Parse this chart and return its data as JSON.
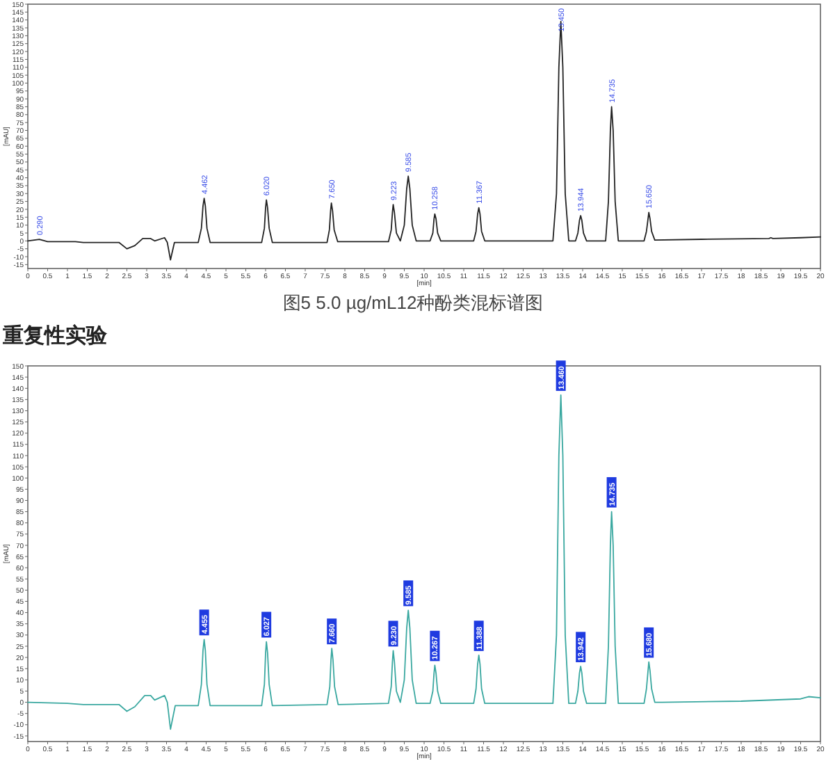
{
  "chart_data": [
    {
      "type": "line",
      "xlabel": "[min]",
      "ylabel": "[mAU]",
      "xlim": [
        0,
        20
      ],
      "ylim": [
        -17.5,
        150
      ],
      "xticks": [
        0,
        0.5,
        1,
        1.5,
        2,
        2.5,
        3,
        3.5,
        4,
        4.5,
        5,
        5.5,
        6,
        6.5,
        7,
        7.5,
        8,
        8.5,
        9,
        9.5,
        10,
        10.5,
        11,
        11.5,
        12,
        12.5,
        13,
        13.5,
        14,
        14.5,
        15,
        15.5,
        16,
        16.5,
        17,
        17.5,
        18,
        18.5,
        19,
        19.5,
        20
      ],
      "yticks": [
        -15,
        -10,
        -5,
        0,
        5,
        10,
        15,
        20,
        25,
        30,
        35,
        40,
        45,
        50,
        55,
        60,
        65,
        70,
        75,
        80,
        85,
        90,
        95,
        100,
        105,
        110,
        115,
        120,
        125,
        130,
        135,
        140,
        145,
        150
      ],
      "series": [
        {
          "color": "#222222",
          "x": [
            0,
            0.29,
            0.5,
            1.2,
            1.4,
            2.3,
            2.5,
            2.7,
            2.9,
            3.1,
            3.2,
            3.45,
            3.52,
            3.6,
            3.7,
            4.3,
            4.38,
            4.42,
            4.45,
            4.48,
            4.52,
            4.6,
            5.9,
            5.97,
            6.0,
            6.02,
            6.05,
            6.09,
            6.17,
            7.55,
            7.61,
            7.64,
            7.66,
            7.69,
            7.73,
            7.82,
            9.1,
            9.17,
            9.2,
            9.22,
            9.25,
            9.3,
            9.4,
            9.5,
            9.56,
            9.6,
            9.64,
            9.7,
            9.8,
            10.15,
            10.22,
            10.25,
            10.27,
            10.3,
            10.34,
            10.42,
            11.25,
            11.31,
            11.35,
            11.38,
            11.41,
            11.45,
            11.53,
            13.25,
            13.34,
            13.4,
            13.45,
            13.5,
            13.56,
            13.65,
            13.82,
            13.88,
            13.92,
            13.95,
            13.98,
            14.02,
            14.1,
            14.58,
            14.65,
            14.7,
            14.73,
            14.77,
            14.82,
            14.9,
            15.55,
            15.61,
            15.65,
            15.67,
            15.7,
            15.74,
            15.82,
            17,
            18.7,
            18.75,
            18.8,
            19.5,
            20
          ],
          "values": [
            0,
            1,
            -0.5,
            -0.5,
            -1,
            -1,
            -5,
            -3,
            1.5,
            1.5,
            0,
            2,
            -1,
            -12,
            -1,
            -1,
            8,
            22,
            27,
            22,
            8,
            -1,
            -1,
            8,
            21,
            26,
            21,
            8,
            -1,
            -1,
            7,
            19,
            24,
            19,
            7,
            -0.5,
            -0.5,
            7,
            18,
            23,
            18,
            5,
            0,
            10,
            33,
            41,
            33,
            10,
            0,
            0,
            5,
            14,
            17,
            14,
            5,
            0,
            0,
            6,
            17,
            21,
            17,
            6,
            0,
            0,
            30,
            110,
            139,
            110,
            30,
            0,
            0,
            5,
            13,
            16,
            13,
            5,
            0,
            0,
            25,
            70,
            85,
            70,
            25,
            0,
            0,
            6,
            14,
            18,
            14,
            6,
            0.5,
            1,
            1.5,
            2,
            1.5,
            2,
            2.5
          ]
        }
      ],
      "annotations": [
        {
          "text": "0.290",
          "x": 0.29,
          "y": 1
        },
        {
          "text": "4.462",
          "x": 4.45,
          "y": 27
        },
        {
          "text": "6.020",
          "x": 6.02,
          "y": 26
        },
        {
          "text": "7.650",
          "x": 7.66,
          "y": 24
        },
        {
          "text": "9.223",
          "x": 9.22,
          "y": 23
        },
        {
          "text": "9.585",
          "x": 9.6,
          "y": 41
        },
        {
          "text": "10.258",
          "x": 10.27,
          "y": 17
        },
        {
          "text": "11.367",
          "x": 11.38,
          "y": 21
        },
        {
          "text": "13.450",
          "x": 13.45,
          "y": 139
        },
        {
          "text": "13.944",
          "x": 13.95,
          "y": 16
        },
        {
          "text": "14.735",
          "x": 14.73,
          "y": 85
        },
        {
          "text": "15.650",
          "x": 15.67,
          "y": 18
        },
        "图5  5.0 µg/mL12种酚类混标谱图"
      ]
    },
    {
      "type": "line",
      "title": "重复性实验",
      "xlabel": "[min]",
      "ylabel": "[mAU]",
      "xlim": [
        0,
        20
      ],
      "ylim": [
        -17.5,
        150
      ],
      "xticks": [
        0,
        0.5,
        1,
        1.5,
        2,
        2.5,
        3,
        3.5,
        4,
        4.5,
        5,
        5.5,
        6,
        6.5,
        7,
        7.5,
        8,
        8.5,
        9,
        9.5,
        10,
        10.5,
        11,
        11.5,
        12,
        12.5,
        13,
        13.5,
        14,
        14.5,
        15,
        15.5,
        16,
        16.5,
        17,
        17.5,
        18,
        18.5,
        19,
        19.5,
        20
      ],
      "yticks": [
        -15,
        -10,
        -5,
        0,
        5,
        10,
        15,
        20,
        25,
        30,
        35,
        40,
        45,
        50,
        55,
        60,
        65,
        70,
        75,
        80,
        85,
        90,
        95,
        100,
        105,
        110,
        115,
        120,
        125,
        130,
        135,
        140,
        145,
        150
      ],
      "series": [
        {
          "color": "#3aa8a0",
          "x": [
            0,
            1,
            1.4,
            2.3,
            2.5,
            2.7,
            2.95,
            3.1,
            3.2,
            3.45,
            3.52,
            3.6,
            3.72,
            4.3,
            4.38,
            4.42,
            4.45,
            4.48,
            4.52,
            4.6,
            5.9,
            5.97,
            6.0,
            6.02,
            6.05,
            6.09,
            6.17,
            7.55,
            7.62,
            7.65,
            7.67,
            7.7,
            7.74,
            7.83,
            9.1,
            9.17,
            9.2,
            9.22,
            9.25,
            9.3,
            9.4,
            9.5,
            9.56,
            9.6,
            9.64,
            9.7,
            9.8,
            10.15,
            10.22,
            10.25,
            10.27,
            10.3,
            10.34,
            10.42,
            11.25,
            11.31,
            11.35,
            11.38,
            11.41,
            11.45,
            11.53,
            13.25,
            13.34,
            13.4,
            13.45,
            13.5,
            13.56,
            13.65,
            13.82,
            13.88,
            13.92,
            13.95,
            13.98,
            14.02,
            14.1,
            14.58,
            14.65,
            14.7,
            14.73,
            14.77,
            14.82,
            14.9,
            15.55,
            15.61,
            15.65,
            15.67,
            15.7,
            15.74,
            15.82,
            16,
            18,
            19.5,
            19.7,
            20
          ],
          "values": [
            0,
            -0.5,
            -1,
            -1,
            -4,
            -2,
            3,
            3,
            1,
            3,
            0,
            -12,
            -1.5,
            -1.5,
            8,
            23,
            28,
            23,
            8,
            -1.5,
            -1.5,
            8,
            22,
            27,
            22,
            8,
            -1.5,
            -1,
            7,
            19,
            24,
            19,
            7,
            -1,
            -0.5,
            7,
            18,
            23,
            18,
            5,
            0,
            10,
            33,
            41,
            33,
            10,
            -0.5,
            -0.5,
            5,
            13,
            16.5,
            13,
            5,
            -0.5,
            -0.5,
            6,
            17,
            21,
            17,
            6,
            -0.5,
            -0.5,
            30,
            110,
            137,
            110,
            30,
            -0.5,
            -0.5,
            5,
            13,
            16,
            13,
            5,
            -0.5,
            -0.5,
            25,
            70,
            85,
            70,
            25,
            -0.5,
            -0.5,
            6,
            14,
            18,
            14,
            6,
            0,
            0,
            0.5,
            1.5,
            2.5,
            2
          ]
        }
      ],
      "annotations": [
        {
          "text": "4.455",
          "x": 4.45,
          "y": 28
        },
        {
          "text": "6.027",
          "x": 6.02,
          "y": 27
        },
        {
          "text": "7.660",
          "x": 7.67,
          "y": 24
        },
        {
          "text": "9.230",
          "x": 9.22,
          "y": 23
        },
        {
          "text": "9.585",
          "x": 9.6,
          "y": 41
        },
        {
          "text": "10.267",
          "x": 10.27,
          "y": 16.5
        },
        {
          "text": "11.388",
          "x": 11.38,
          "y": 21
        },
        {
          "text": "13.460",
          "x": 13.45,
          "y": 137
        },
        {
          "text": "13.942",
          "x": 13.95,
          "y": 16
        },
        {
          "text": "14.735",
          "x": 14.73,
          "y": 85
        },
        {
          "text": "15.680",
          "x": 15.67,
          "y": 18
        }
      ]
    }
  ]
}
